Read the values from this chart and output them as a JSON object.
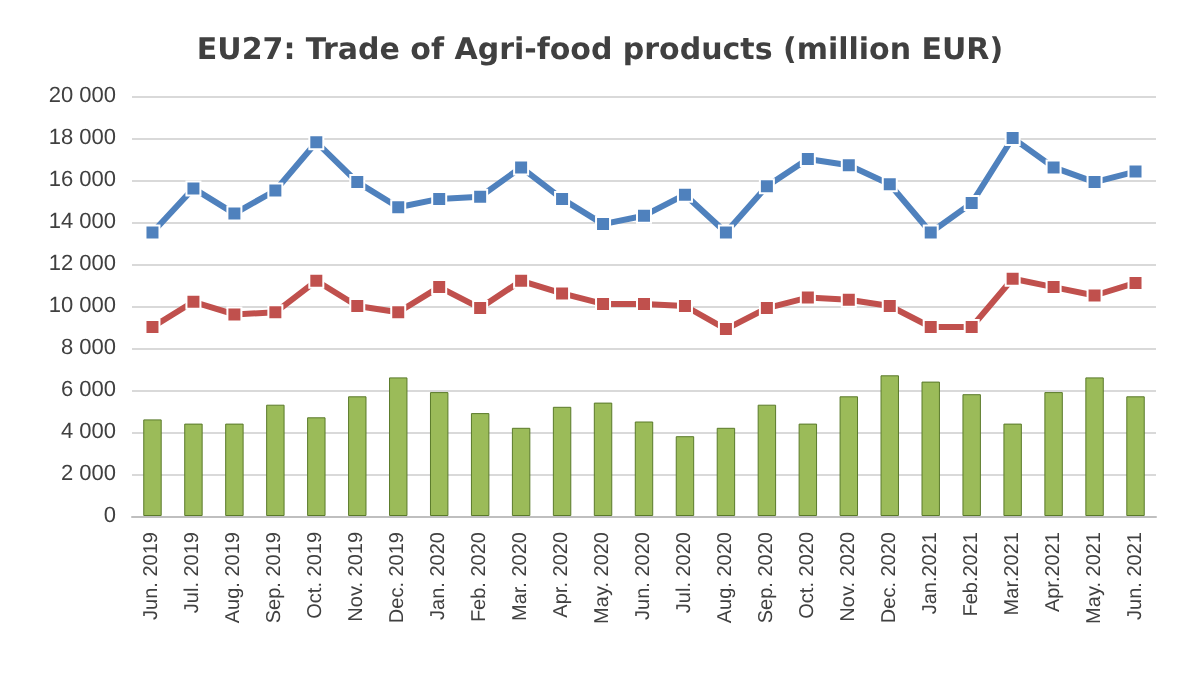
{
  "chart_data": {
    "type": "bar",
    "title": "EU27: Trade of Agri-food products (million EUR)",
    "categories": [
      "Jun. 2019",
      "Jul. 2019",
      "Aug. 2019",
      "Sep. 2019",
      "Oct. 2019",
      "Nov. 2019",
      "Dec. 2019",
      "Jan. 2020",
      "Feb. 2020",
      "Mar. 2020",
      "Apr. 2020",
      "May. 2020",
      "Jun. 2020",
      "Jul. 2020",
      "Aug. 2020",
      "Sep. 2020",
      "Oct. 2020",
      "Nov. 2020",
      "Dec. 2020",
      "Jan.2021",
      "Feb.2021",
      "Mar.2021",
      "Apr.2021",
      "May. 2021",
      "Jun. 2021"
    ],
    "series": [
      {
        "type": "line",
        "color": "#4f81bd",
        "values": [
          13500,
          15600,
          14400,
          15500,
          17800,
          15900,
          14700,
          15100,
          15200,
          16600,
          15100,
          13900,
          14300,
          15300,
          13500,
          15700,
          17000,
          16700,
          15800,
          13500,
          14900,
          18000,
          16600,
          15900,
          16400
        ]
      },
      {
        "type": "line",
        "color": "#c0504d",
        "values": [
          9000,
          10200,
          9600,
          9700,
          11200,
          10000,
          9700,
          10900,
          9900,
          11200,
          10600,
          10100,
          10100,
          10000,
          8900,
          9900,
          10400,
          10300,
          10000,
          9000,
          9000,
          11300,
          10900,
          10500,
          11100
        ]
      },
      {
        "color": "#9bbb59",
        "values": [
          4600,
          4400,
          4400,
          5300,
          4700,
          5700,
          6600,
          5900,
          4900,
          4200,
          5200,
          5400,
          4500,
          3800,
          4200,
          5300,
          4400,
          5700,
          6700,
          6400,
          5800,
          4400,
          5900,
          6600,
          5700
        ]
      }
    ],
    "ylim": [
      0,
      20000
    ],
    "yticks": [
      {
        "value": 0,
        "label": "0"
      },
      {
        "value": 2000,
        "label": "2 000"
      },
      {
        "value": 4000,
        "label": "4 000"
      },
      {
        "value": 6000,
        "label": "6 000"
      },
      {
        "value": 8000,
        "label": "8 000"
      },
      {
        "value": 10000,
        "label": "10 000"
      },
      {
        "value": 12000,
        "label": "12 000"
      },
      {
        "value": 14000,
        "label": "14 000"
      },
      {
        "value": 16000,
        "label": "16 000"
      },
      {
        "value": 18000,
        "label": "18 000"
      },
      {
        "value": 20000,
        "label": "20 000"
      }
    ],
    "grid": "y",
    "marker": "square"
  }
}
